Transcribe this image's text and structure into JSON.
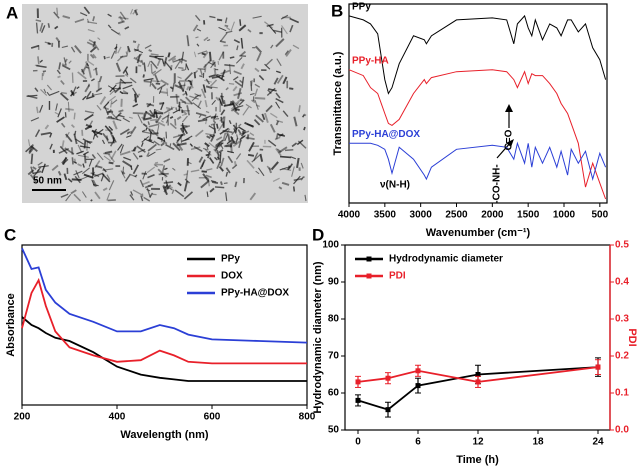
{
  "image_panel": {
    "panel_label": "A",
    "scale_bar_label": "50 nm"
  },
  "chart_data": [
    {
      "type": "line",
      "panel_label": "B",
      "x_label": "Wavenumber (cm⁻¹)",
      "y_label": "Transmittance (a.u.)",
      "xlim": [
        4000,
        400
      ],
      "xticks": [
        4000,
        3500,
        3000,
        2500,
        2000,
        1500,
        1000,
        500
      ],
      "ylim": [
        0,
        100
      ],
      "legend": "inline",
      "annotations": [
        "C=O",
        "-CO-NH-",
        "ν(N-H)"
      ],
      "x": [
        4000,
        3800,
        3700,
        3600,
        3500,
        3450,
        3400,
        3300,
        3100,
        2950,
        2920,
        2850,
        2500,
        2000,
        1800,
        1700,
        1650,
        1550,
        1500,
        1450,
        1400,
        1300,
        1200,
        1100,
        1040,
        950,
        900,
        800,
        700,
        600,
        500,
        420
      ],
      "series": [
        {
          "name": "PPy",
          "color": "#000000",
          "values": [
            94,
            92,
            90,
            85,
            62,
            55,
            58,
            70,
            84,
            82,
            80,
            84,
            92,
            93,
            92,
            80,
            90,
            94,
            88,
            84,
            92,
            82,
            90,
            88,
            84,
            92,
            92,
            86,
            90,
            78,
            72,
            62
          ]
        },
        {
          "name": "PPy-HA",
          "color": "#e8202a",
          "values": [
            67,
            64,
            58,
            55,
            45,
            40,
            39,
            42,
            55,
            62,
            60,
            63,
            66,
            67,
            66,
            62,
            58,
            66,
            60,
            65,
            64,
            64,
            60,
            55,
            50,
            45,
            40,
            30,
            8,
            20,
            10,
            2
          ]
        },
        {
          "name": "PPy-HA@DOX",
          "color": "#2b3fd6",
          "values": [
            30,
            30,
            30,
            29,
            27,
            22,
            15,
            28,
            22,
            14,
            12,
            18,
            27,
            29,
            28,
            22,
            30,
            20,
            30,
            18,
            28,
            20,
            28,
            18,
            26,
            14,
            27,
            20,
            26,
            12,
            25,
            18
          ]
        }
      ]
    },
    {
      "type": "line",
      "panel_label": "C",
      "x_label": "Wavelength (nm)",
      "y_label": "Absorbance",
      "xlim": [
        200,
        800
      ],
      "xticks": [
        200,
        400,
        600,
        800
      ],
      "ylim": [
        0,
        100
      ],
      "legend": "upper right",
      "x": [
        200,
        220,
        235,
        250,
        270,
        300,
        350,
        400,
        450,
        490,
        520,
        550,
        600,
        700,
        800
      ],
      "series": [
        {
          "name": "PPy",
          "color": "#000000",
          "values": [
            55,
            50,
            48,
            45,
            42,
            40,
            33,
            24,
            19,
            17,
            16,
            15,
            15,
            15,
            15
          ]
        },
        {
          "name": "DOX",
          "color": "#e8202a",
          "values": [
            48,
            70,
            78,
            62,
            46,
            36,
            31,
            27,
            28,
            34,
            31,
            27,
            26,
            26,
            26
          ]
        },
        {
          "name": "PPy-HA@DOX",
          "color": "#2b3fd6",
          "values": [
            98,
            85,
            86,
            72,
            64,
            57,
            52,
            46,
            46,
            50,
            48,
            44,
            41,
            40,
            39
          ]
        }
      ]
    },
    {
      "type": "line",
      "panel_label": "D",
      "x_label": "Time (h)",
      "y_label": "Hydrodynamic diameter (nm)",
      "y2_label": "PDI",
      "xlim": [
        -1.3,
        25.2
      ],
      "xticks": [
        0,
        6,
        12,
        18,
        24
      ],
      "ylim": [
        50,
        100
      ],
      "yticks": [
        50,
        60,
        70,
        80,
        90,
        100
      ],
      "y2lim": [
        0,
        0.5
      ],
      "y2ticks": [
        {
          "value": 0,
          "label": "0.0"
        },
        0.1,
        0.2,
        0.3,
        0.4,
        0.5
      ],
      "legend": "upper left",
      "x": [
        0,
        3,
        6,
        12,
        24
      ],
      "series": [
        {
          "name": "Hydrodynamic diameter",
          "color": "#000000",
          "values": [
            58,
            55.5,
            62,
            65,
            67
          ],
          "errors": [
            1.5,
            2,
            2,
            2.5,
            2.5
          ]
        },
        {
          "name": "PDI",
          "color": "#e8202a",
          "axis": "y2",
          "values": [
            0.13,
            0.14,
            0.16,
            0.13,
            0.17
          ],
          "errors": [
            0.015,
            0.015,
            0.015,
            0.015,
            0.02
          ]
        }
      ]
    }
  ]
}
